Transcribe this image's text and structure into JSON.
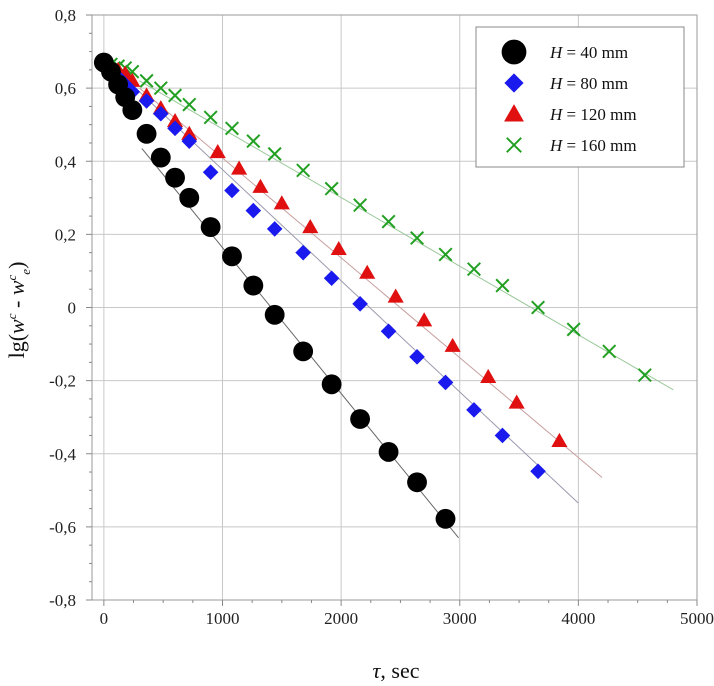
{
  "chart_data": {
    "type": "scatter",
    "xlabel": "τ, sec",
    "ylabel": "lg(w^c - w^c_e)",
    "xlim": [
      -100,
      5000
    ],
    "ylim": [
      -0.8,
      0.8
    ],
    "x_ticks": [
      "0",
      "1000",
      "2000",
      "3000",
      "4000",
      "5000"
    ],
    "y_ticks": [
      "-0,8",
      "-0,6",
      "-0,4",
      "-0,2",
      "0",
      "0,2",
      "0,4",
      "0,6",
      "0,8"
    ],
    "grid": true,
    "legend_position": "top-right",
    "series": [
      {
        "name": "H = 40 mm",
        "legend_prefix": "H",
        "legend_suffix": " = 40 mm",
        "marker": "circle",
        "color": "#000000",
        "x": [
          0,
          60,
          120,
          180,
          240,
          360,
          480,
          600,
          720,
          900,
          1080,
          1260,
          1440,
          1680,
          1920,
          2160,
          2400,
          2640,
          2880
        ],
        "y": [
          0.67,
          0.645,
          0.61,
          0.575,
          0.54,
          0.475,
          0.41,
          0.355,
          0.3,
          0.22,
          0.14,
          0.06,
          -0.02,
          -0.12,
          -0.21,
          -0.305,
          -0.395,
          -0.478,
          -0.578
        ],
        "fit": [
          [
            320,
            0.435
          ],
          [
            2990,
            -0.63
          ]
        ],
        "fit_color": "#666666"
      },
      {
        "name": "H = 80 mm",
        "legend_prefix": "H",
        "legend_suffix": " = 80 mm",
        "marker": "diamond",
        "color": "#1a1aee",
        "x": [
          0,
          60,
          120,
          180,
          240,
          360,
          480,
          600,
          720,
          900,
          1080,
          1260,
          1440,
          1680,
          1920,
          2160,
          2400,
          2640,
          2880,
          3120,
          3360,
          3660
        ],
        "y": [
          0.67,
          0.655,
          0.63,
          0.61,
          0.59,
          0.565,
          0.53,
          0.49,
          0.455,
          0.37,
          0.32,
          0.265,
          0.215,
          0.15,
          0.08,
          0.01,
          -0.065,
          -0.135,
          -0.205,
          -0.28,
          -0.35,
          -0.448
        ],
        "fit": [
          [
            300,
            0.59
          ],
          [
            4000,
            -0.535
          ]
        ],
        "fit_color": "#9a9ab0"
      },
      {
        "name": "H = 120 mm",
        "legend_prefix": "H",
        "legend_suffix": " = 120 mm",
        "marker": "triangle",
        "color": "#e01010",
        "x": [
          0,
          60,
          120,
          180,
          240,
          360,
          480,
          600,
          720,
          960,
          1140,
          1320,
          1500,
          1740,
          1980,
          2220,
          2460,
          2700,
          2940,
          3240,
          3480,
          3840
        ],
        "y": [
          0.67,
          0.66,
          0.65,
          0.64,
          0.62,
          0.58,
          0.545,
          0.51,
          0.475,
          0.425,
          0.38,
          0.33,
          0.285,
          0.22,
          0.16,
          0.095,
          0.03,
          -0.035,
          -0.105,
          -0.19,
          -0.26,
          -0.365
        ],
        "fit": [
          [
            300,
            0.6
          ],
          [
            4200,
            -0.465
          ]
        ],
        "fit_color": "#c8a0a0"
      },
      {
        "name": "H = 160 mm",
        "legend_prefix": "H",
        "legend_suffix": " = 160 mm",
        "marker": "x",
        "color": "#22a022",
        "x": [
          0,
          60,
          120,
          180,
          240,
          360,
          480,
          600,
          720,
          900,
          1080,
          1260,
          1440,
          1680,
          1920,
          2160,
          2400,
          2640,
          2880,
          3120,
          3360,
          3660,
          3960,
          4260,
          4560
        ],
        "y": [
          0.67,
          0.665,
          0.66,
          0.655,
          0.645,
          0.62,
          0.6,
          0.58,
          0.555,
          0.52,
          0.49,
          0.455,
          0.42,
          0.375,
          0.325,
          0.28,
          0.235,
          0.19,
          0.145,
          0.105,
          0.06,
          0.0,
          -0.06,
          -0.12,
          -0.185
        ],
        "fit": [
          [
            300,
            0.62
          ],
          [
            4800,
            -0.225
          ]
        ],
        "fit_color": "#9ac89a"
      }
    ]
  }
}
